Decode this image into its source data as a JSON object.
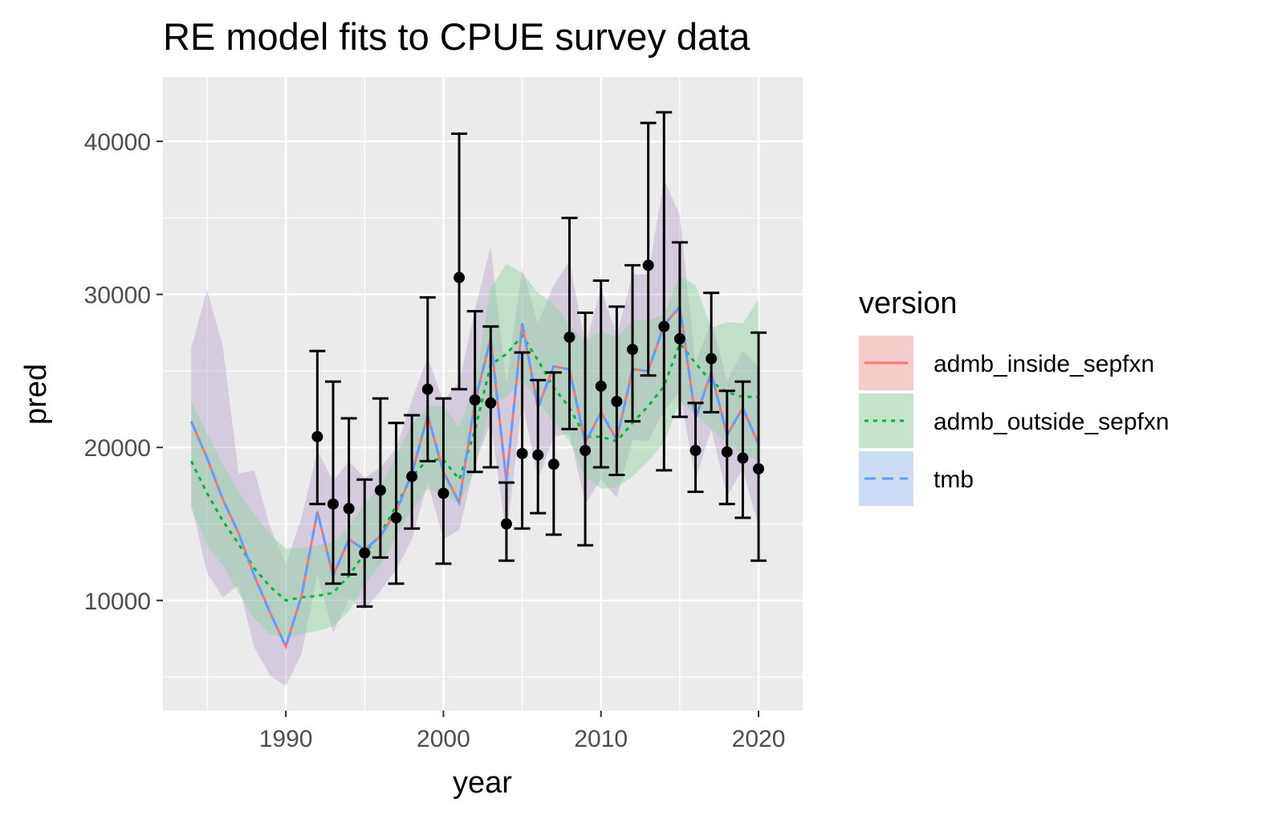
{
  "chart_data": {
    "type": "line",
    "title": "RE model fits to CPUE survey data",
    "xlabel": "year",
    "ylabel": "pred",
    "xlim": [
      1982.2,
      2022.8
    ],
    "ylim": [
      2800,
      44200
    ],
    "x_ticks": [
      1990,
      2000,
      2010,
      2020
    ],
    "x_tick_labels": [
      "1990",
      "2000",
      "2010",
      "2020"
    ],
    "y_ticks": [
      10000,
      20000,
      30000,
      40000
    ],
    "y_tick_labels": [
      "10000",
      "20000",
      "30000",
      "40000"
    ],
    "grid": true,
    "legend": {
      "title": "version",
      "position": "right"
    },
    "colors": {
      "panel_bg": "#ebebeb",
      "admb_inside_sepfxn": "#f8766d",
      "admb_outside_sepfxn": "#00ba38",
      "tmb": "#619cff",
      "band_purple": "#9a7ab8",
      "band_green": "#8fd3a0",
      "observations": "#000000"
    },
    "x": [
      1984,
      1985,
      1986,
      1987,
      1988,
      1989,
      1990,
      1991,
      1992,
      1993,
      1994,
      1995,
      1996,
      1997,
      1998,
      1999,
      2000,
      2001,
      2002,
      2003,
      2004,
      2005,
      2006,
      2007,
      2008,
      2009,
      2010,
      2011,
      2012,
      2013,
      2014,
      2015,
      2016,
      2017,
      2018,
      2019,
      2020
    ],
    "series": [
      {
        "name": "admb_inside_sepfxn",
        "linetype": "solid",
        "values": [
          21700,
          19300,
          16600,
          14400,
          11600,
          9200,
          7000,
          10300,
          15800,
          11600,
          14000,
          13300,
          14200,
          15800,
          18300,
          22100,
          18400,
          16400,
          23000,
          27100,
          17800,
          28100,
          22600,
          25300,
          25100,
          20300,
          22300,
          20500,
          25100,
          25000,
          28000,
          29200,
          21900,
          24900,
          20800,
          22600,
          20200
        ],
        "lower": [
          16300,
          11800,
          10200,
          11000,
          6900,
          5100,
          4400,
          6500,
          11700,
          7900,
          10100,
          9400,
          10600,
          12000,
          14000,
          17700,
          14000,
          14600,
          18900,
          21600,
          14200,
          23000,
          17900,
          20700,
          20900,
          16300,
          17900,
          16700,
          20500,
          20400,
          22400,
          23600,
          17900,
          21200,
          16800,
          18600,
          14800
        ],
        "upper": [
          26500,
          30300,
          26600,
          18300,
          18500,
          14800,
          12400,
          15400,
          19800,
          17800,
          19100,
          18000,
          18700,
          19900,
          23100,
          25900,
          23000,
          24300,
          29000,
          33100,
          24200,
          31700,
          28100,
          30600,
          32200,
          26700,
          30400,
          27300,
          31300,
          31300,
          37500,
          35200,
          25500,
          28300,
          24400,
          26300,
          25300
        ]
      },
      {
        "name": "admb_outside_sepfxn",
        "linetype": "dotted",
        "values": [
          19100,
          17000,
          15200,
          13700,
          12100,
          10900,
          10000,
          10200,
          10300,
          10500,
          11600,
          13100,
          14300,
          16200,
          18100,
          19200,
          19200,
          17900,
          21100,
          25400,
          26100,
          27300,
          25700,
          23900,
          22600,
          20700,
          20700,
          20400,
          21600,
          22700,
          24000,
          26800,
          25500,
          24300,
          23600,
          23300,
          23300
        ],
        "lower": [
          16000,
          13600,
          12300,
          10500,
          8800,
          7800,
          7500,
          7800,
          8000,
          8300,
          9300,
          11000,
          12300,
          14100,
          16000,
          17300,
          16900,
          16300,
          18600,
          22900,
          23300,
          24400,
          23000,
          21700,
          20400,
          18100,
          17300,
          17400,
          18100,
          19100,
          20300,
          23000,
          22200,
          21200,
          20300,
          19500,
          19200
        ],
        "upper": [
          23000,
          20900,
          18900,
          17100,
          15600,
          14300,
          13400,
          13400,
          13600,
          13800,
          14800,
          16300,
          17400,
          19500,
          21500,
          22700,
          22700,
          21300,
          24200,
          30400,
          32000,
          31400,
          30100,
          29400,
          28000,
          26900,
          27600,
          27200,
          28300,
          28300,
          28700,
          31200,
          30600,
          27800,
          28200,
          28100,
          29700
        ]
      },
      {
        "name": "tmb",
        "linetype": "dashed",
        "values": [
          21700,
          19300,
          16600,
          14400,
          11600,
          9200,
          7000,
          10300,
          15800,
          11600,
          14000,
          13300,
          14200,
          15800,
          18300,
          22100,
          18400,
          16400,
          23000,
          27100,
          17800,
          28100,
          22600,
          25300,
          25100,
          20300,
          22300,
          20500,
          25100,
          25000,
          28000,
          29200,
          21900,
          24900,
          20800,
          22600,
          20200
        ]
      }
    ],
    "observations": {
      "name": "CPUE survey",
      "x": [
        1992,
        1993,
        1994,
        1995,
        1996,
        1997,
        1998,
        1999,
        2000,
        2001,
        2002,
        2003,
        2004,
        2005,
        2006,
        2007,
        2008,
        2009,
        2010,
        2011,
        2012,
        2013,
        2014,
        2015,
        2016,
        2017,
        2018,
        2019,
        2020
      ],
      "y": [
        20700,
        16300,
        16000,
        13100,
        17200,
        15400,
        18100,
        23800,
        17000,
        31100,
        23100,
        22900,
        15000,
        19600,
        19500,
        18900,
        27200,
        19800,
        24000,
        23000,
        26400,
        31900,
        27900,
        27100,
        19800,
        25800,
        19700,
        19300,
        18600
      ],
      "lower": [
        16300,
        11100,
        11700,
        9600,
        12800,
        11100,
        14700,
        19100,
        12400,
        23800,
        18400,
        18700,
        12600,
        14700,
        15700,
        14300,
        21200,
        13600,
        18700,
        18200,
        21700,
        24700,
        18500,
        22000,
        17100,
        22300,
        16300,
        15400,
        12600
      ],
      "upper": [
        26300,
        24300,
        21900,
        17900,
        23200,
        21600,
        22100,
        29800,
        23200,
        40500,
        28900,
        27900,
        17700,
        26200,
        24400,
        24900,
        35000,
        28800,
        30900,
        29200,
        31900,
        41200,
        41900,
        33400,
        22900,
        30100,
        23700,
        24300,
        27500
      ]
    }
  }
}
